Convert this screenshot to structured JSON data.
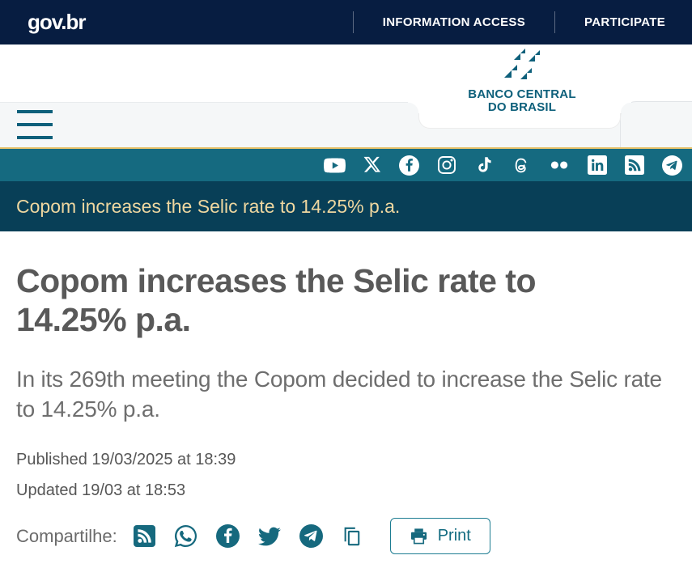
{
  "topbar": {
    "brand": "gov.br",
    "links": [
      {
        "label": "INFORMATION ACCESS"
      },
      {
        "label": "PARTICIPATE"
      }
    ]
  },
  "header": {
    "logo_line1": "BANCO CENTRAL",
    "logo_line2": "DO BRASIL"
  },
  "social_bar": {
    "icons": [
      "youtube",
      "x",
      "facebook",
      "instagram",
      "tiktok",
      "threads",
      "flickr",
      "linkedin",
      "rss",
      "telegram"
    ]
  },
  "breadcrumb": {
    "current": "Copom increases the Selic rate to 14.25% p.a."
  },
  "article": {
    "title": "Copom increases the Selic rate to 14.25% p.a.",
    "subtitle": "In its 269th meeting the Copom decided to increase the Selic rate to 14.25% p.a.",
    "published": "Published 19/03/2025 at 18:39",
    "updated": "Updated 19/03 at 18:53"
  },
  "share": {
    "label": "Compartilhe:",
    "icons": [
      "rss",
      "whatsapp",
      "facebook",
      "twitter",
      "telegram",
      "copy"
    ],
    "print_label": "Print"
  },
  "colors": {
    "gov_navy": "#071d41",
    "social_teal": "#156a80",
    "breadcrumb_teal": "#083f57",
    "brand_teal": "#0e607b",
    "share_icon_teal": "#16697e",
    "gold_accent": "#e6c26a",
    "breadcrumb_text": "#eed7a0"
  }
}
